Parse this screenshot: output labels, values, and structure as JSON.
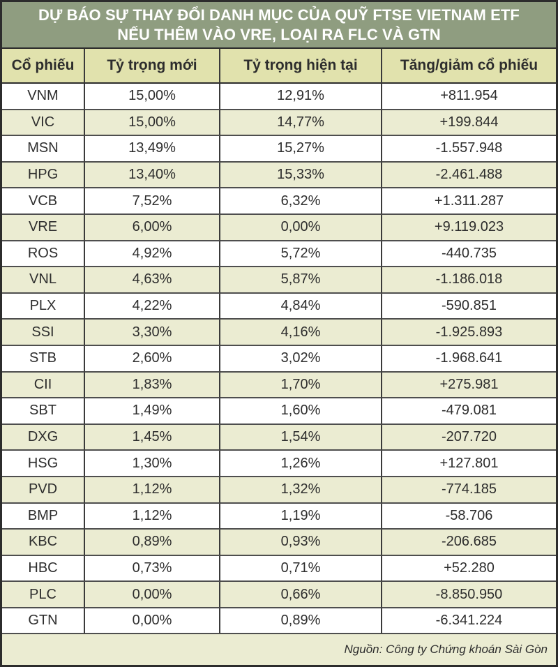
{
  "chart_data": {
    "type": "table",
    "title": "DỰ BÁO SỰ THAY ĐỔI DANH MỤC CỦA QUỸ FTSE VIETNAM ETF NẾU THÊM VÀO VRE, LOẠI RA FLC VÀ GTN",
    "title_lines": [
      "DỰ BÁO SỰ THAY ĐỔI DANH MỤC CỦA QUỸ FTSE VIETNAM ETF",
      "NẾU THÊM VÀO VRE, LOẠI RA FLC VÀ GTN"
    ],
    "columns": [
      "Cổ phiếu",
      "Tỷ trọng mới",
      "Tỷ trọng hiện tại",
      "Tăng/giảm cổ phiếu"
    ],
    "rows": [
      [
        "VNM",
        "15,00%",
        "12,91%",
        "+811.954"
      ],
      [
        "VIC",
        "15,00%",
        "14,77%",
        "+199.844"
      ],
      [
        "MSN",
        "13,49%",
        "15,27%",
        "-1.557.948"
      ],
      [
        "HPG",
        "13,40%",
        "15,33%",
        "-2.461.488"
      ],
      [
        "VCB",
        "7,52%",
        "6,32%",
        "+1.311.287"
      ],
      [
        "VRE",
        "6,00%",
        "0,00%",
        "+9.119.023"
      ],
      [
        "ROS",
        "4,92%",
        "5,72%",
        "-440.735"
      ],
      [
        "VNL",
        "4,63%",
        "5,87%",
        "-1.186.018"
      ],
      [
        "PLX",
        "4,22%",
        "4,84%",
        "-590.851"
      ],
      [
        "SSI",
        "3,30%",
        "4,16%",
        "-1.925.893"
      ],
      [
        "STB",
        "2,60%",
        "3,02%",
        "-1.968.641"
      ],
      [
        "CII",
        "1,83%",
        "1,70%",
        "+275.981"
      ],
      [
        "SBT",
        "1,49%",
        "1,60%",
        "-479.081"
      ],
      [
        "DXG",
        "1,45%",
        "1,54%",
        "-207.720"
      ],
      [
        "HSG",
        "1,30%",
        "1,26%",
        "+127.801"
      ],
      [
        "PVD",
        "1,12%",
        "1,32%",
        "-774.185"
      ],
      [
        "BMP",
        "1,12%",
        "1,19%",
        "-58.706"
      ],
      [
        "KBC",
        "0,89%",
        "0,93%",
        "-206.685"
      ],
      [
        "HBC",
        "0,73%",
        "0,71%",
        "+52.280"
      ],
      [
        "PLC",
        "0,00%",
        "0,66%",
        "-8.850.950"
      ],
      [
        "GTN",
        "0,00%",
        "0,89%",
        "-6.341.224"
      ]
    ],
    "source": "Nguồn: Công ty Chứng khoán Sài Gòn",
    "colors": {
      "title_bg": "#8f9d80",
      "title_text": "#ffffff",
      "header_bg": "#e1e2ad",
      "stripe_bg": "#ebecd2",
      "row_bg": "#ffffff",
      "border": "#3a3a3a",
      "text": "#2d2d2d"
    }
  }
}
